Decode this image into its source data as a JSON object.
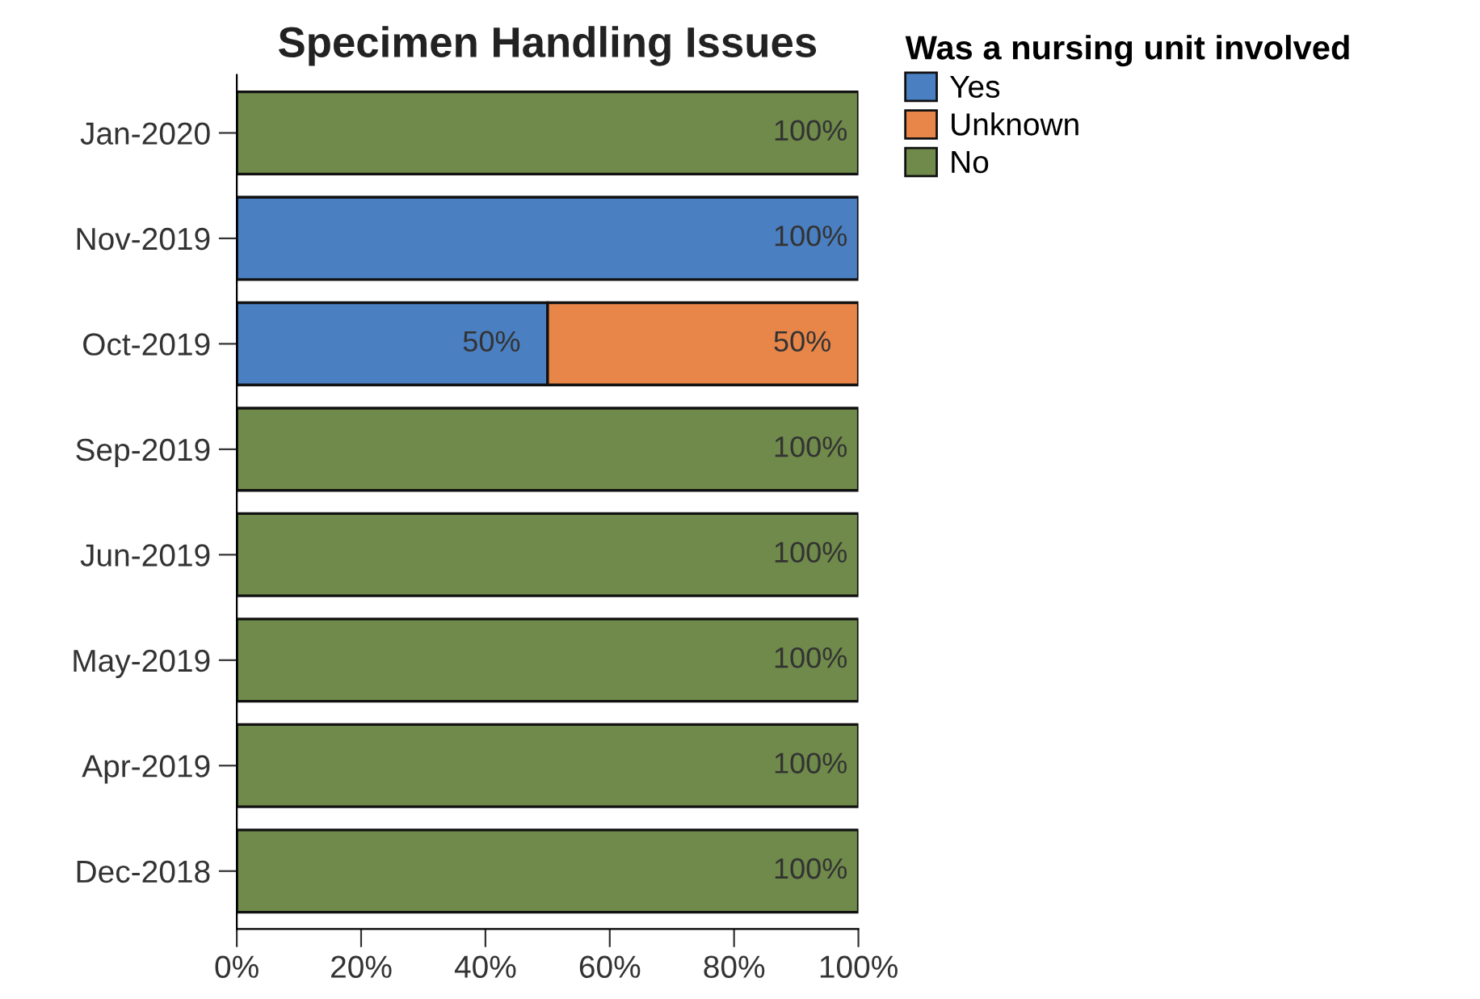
{
  "chart_data": {
    "type": "bar",
    "title": "Specimen Handling Issues",
    "orientation": "horizontal",
    "stacked": true,
    "categories": [
      "Jan-2020",
      "Nov-2019",
      "Oct-2019",
      "Sep-2019",
      "Jun-2019",
      "May-2019",
      "Apr-2019",
      "Dec-2018"
    ],
    "series": [
      {
        "name": "Yes",
        "color": "#4a7fc1",
        "values": [
          null,
          100,
          50,
          null,
          null,
          null,
          null,
          null
        ],
        "value_labels": [
          null,
          "100%",
          "50%",
          null,
          null,
          null,
          null,
          null
        ]
      },
      {
        "name": "Unknown",
        "color": "#e8864a",
        "values": [
          null,
          null,
          50,
          null,
          null,
          null,
          null,
          null
        ],
        "value_labels": [
          null,
          null,
          "50%",
          null,
          null,
          null,
          null,
          null
        ]
      },
      {
        "name": "No",
        "color": "#6f8a4a",
        "values": [
          100,
          null,
          null,
          100,
          100,
          100,
          100,
          100
        ],
        "value_labels": [
          "100%",
          null,
          null,
          "100%",
          "100%",
          "100%",
          "100%",
          "100%"
        ]
      }
    ],
    "legend_title": "Was a nursing unit involved",
    "legend": "top right",
    "grid": false,
    "xlim": [
      0,
      100
    ],
    "xticks": [
      {
        "value": 0,
        "label": "0%"
      },
      {
        "value": 20,
        "label": "20%"
      },
      {
        "value": 40,
        "label": "40%"
      },
      {
        "value": 60,
        "label": "60%"
      },
      {
        "value": 80,
        "label": "80%"
      },
      {
        "value": 100,
        "label": "100%"
      }
    ]
  }
}
